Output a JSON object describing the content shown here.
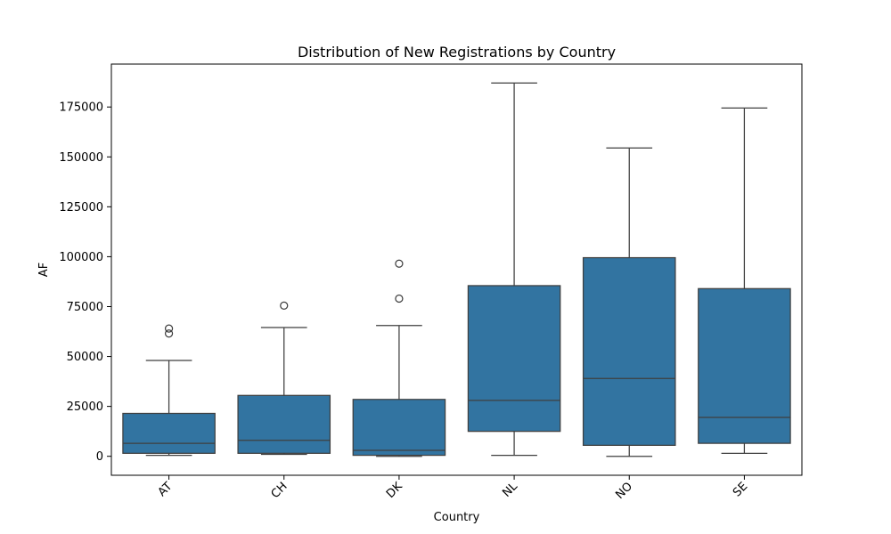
{
  "chart_data": {
    "type": "box",
    "title": "Distribution of New Registrations by Country",
    "xlabel": "Country",
    "ylabel": "AF",
    "ylim": [
      -9500,
      196500
    ],
    "yticks": [
      0,
      25000,
      50000,
      75000,
      100000,
      125000,
      150000,
      175000
    ],
    "ytick_labels": [
      "0",
      "25000",
      "50000",
      "75000",
      "100000",
      "125000",
      "150000",
      "175000"
    ],
    "grid": false,
    "color": "#3274a1",
    "line_color": "#3f3f3f",
    "categories": [
      "AT",
      "CH",
      "DK",
      "NL",
      "NO",
      "SE"
    ],
    "boxes": [
      {
        "category": "AT",
        "whisker_low": 500,
        "q1": 1500,
        "median": 6500,
        "q3": 21500,
        "whisker_high": 48000,
        "outliers": [
          61500,
          64000
        ]
      },
      {
        "category": "CH",
        "whisker_low": 1000,
        "q1": 1500,
        "median": 8000,
        "q3": 30500,
        "whisker_high": 64500,
        "outliers": [
          75500
        ]
      },
      {
        "category": "DK",
        "whisker_low": 0,
        "q1": 500,
        "median": 3000,
        "q3": 28500,
        "whisker_high": 65500,
        "outliers": [
          79000,
          96500
        ]
      },
      {
        "category": "NL",
        "whisker_low": 500,
        "q1": 12500,
        "median": 28000,
        "q3": 85500,
        "whisker_high": 187000,
        "outliers": []
      },
      {
        "category": "NO",
        "whisker_low": 0,
        "q1": 5500,
        "median": 39000,
        "q3": 99500,
        "whisker_high": 154500,
        "outliers": []
      },
      {
        "category": "SE",
        "whisker_low": 1500,
        "q1": 6500,
        "median": 19500,
        "q3": 84000,
        "whisker_high": 174500,
        "outliers": []
      }
    ]
  }
}
